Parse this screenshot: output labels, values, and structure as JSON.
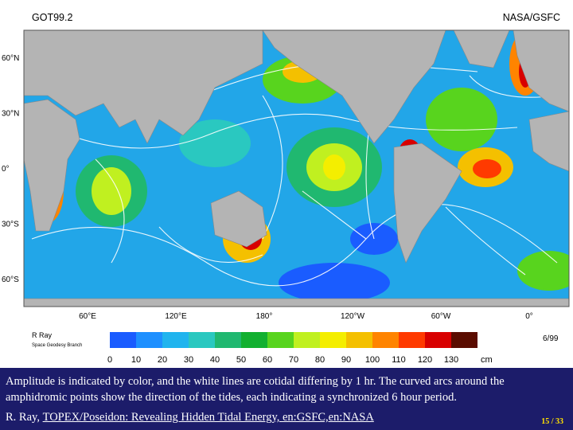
{
  "header": {
    "title": "GOT99.2",
    "source": "NASA/GSFC"
  },
  "map": {
    "lat_labels": [
      "60°N",
      "30°N",
      "0°",
      "30°S",
      "60°S"
    ],
    "lon_labels": [
      "60°E",
      "120°E",
      "180°",
      "120°W",
      "60°W",
      "0°"
    ]
  },
  "legend": {
    "author": "R Ray",
    "branch": "Space Geodesy Branch",
    "colors": [
      "#1a5cff",
      "#1e90ff",
      "#20b4ee",
      "#2ac8c0",
      "#20b870",
      "#12b030",
      "#58d41e",
      "#c0f020",
      "#f4ee00",
      "#f4c000",
      "#ff8400",
      "#ff3a00",
      "#d80000",
      "#5a0c00"
    ],
    "ticks": [
      0,
      10,
      20,
      30,
      40,
      50,
      60,
      70,
      80,
      90,
      100,
      110,
      120,
      130
    ],
    "unit": "cm",
    "date": "6/99"
  },
  "caption": {
    "text": "Amplitude is indicated by color, and the white lines are cotidal differing by 1 hr. The curved arcs around the amphidromic points show the direction of the tides, each indicating a synchronized 6 hour period.",
    "author": "R. Ray,",
    "link": "TOPEX/Poseidon: Revealing Hidden Tidal Energy, en:GSFC,en:NASA"
  },
  "page": "15 / 33"
}
